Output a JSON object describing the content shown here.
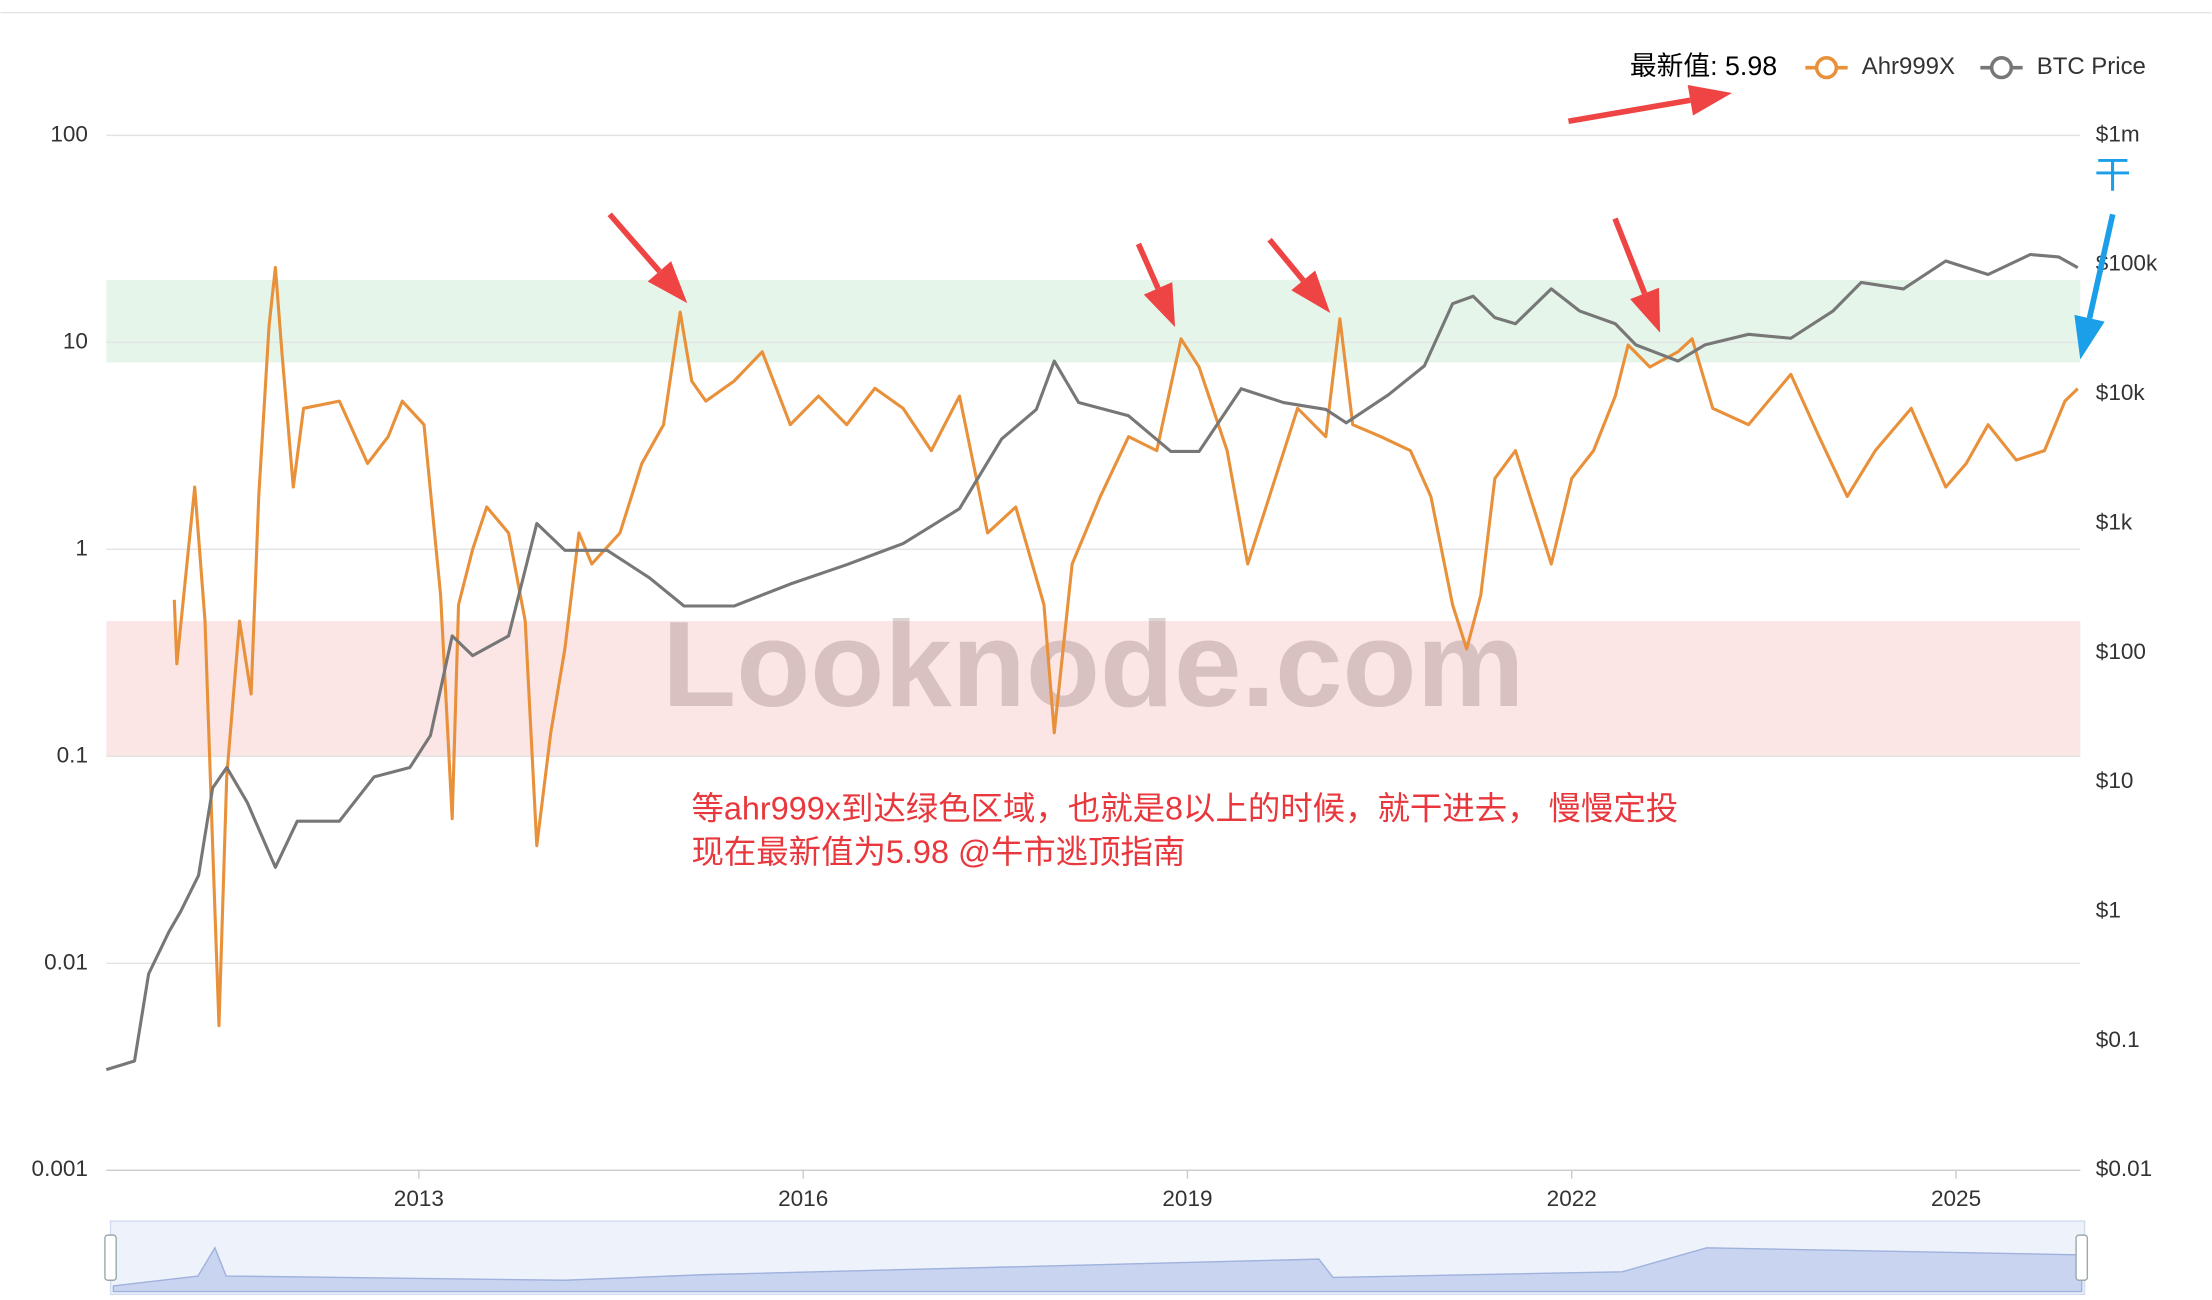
{
  "chart_data": {
    "type": "line",
    "legend_note": "最新值: 5.98",
    "watermark": "Looknode.com",
    "annotations": [
      "等ahr999x到达绿色区域，也就是8以上的时候，就干进去， 慢慢定投",
      "现在最新值为5.98  @牛市逃顶指南",
      "干"
    ],
    "log_scale": true,
    "grid": true,
    "legend_position": "top-right",
    "xlim": [
      2010.56,
      2025.97
    ],
    "xticks": [
      2013,
      2016,
      2019,
      2022,
      2025
    ],
    "ylim": [
      0.001,
      100
    ],
    "yticks": [
      0.001,
      0.01,
      0.1,
      1,
      10,
      100
    ],
    "y2lim": [
      0.01,
      1000000
    ],
    "y2ticks": [
      {
        "value": 0.01,
        "label": "$0.01"
      },
      {
        "value": 0.1,
        "label": "$0.1"
      },
      {
        "value": 1,
        "label": "$1"
      },
      {
        "value": 10,
        "label": "$10"
      },
      {
        "value": 100,
        "label": "$100"
      },
      {
        "value": 1000,
        "label": "$1k"
      },
      {
        "value": 10000,
        "label": "$10k"
      },
      {
        "value": 100000,
        "label": "$100k"
      },
      {
        "value": 1000000,
        "label": "$1m"
      }
    ],
    "bands": [
      {
        "range": [
          8,
          20
        ],
        "color": "#e6f5ea"
      },
      {
        "range": [
          0.1,
          0.45
        ],
        "color": "#fbe5e5"
      }
    ],
    "series": [
      {
        "name": "Ahr999X",
        "color": "#e8913a",
        "x": [
          2011.09,
          2011.11,
          2011.25,
          2011.33,
          2011.39,
          2011.44,
          2011.5,
          2011.6,
          2011.69,
          2011.75,
          2011.83,
          2011.88,
          2011.93,
          2012.02,
          2012.1,
          2012.38,
          2012.6,
          2012.76,
          2012.87,
          2013.04,
          2013.17,
          2013.26,
          2013.31,
          2013.42,
          2013.53,
          2013.7,
          2013.83,
          2013.92,
          2014.03,
          2014.14,
          2014.25,
          2014.35,
          2014.57,
          2014.74,
          2014.91,
          2015.04,
          2015.13,
          2015.24,
          2015.46,
          2015.68,
          2015.9,
          2016.12,
          2016.34,
          2016.56,
          2016.78,
          2017.0,
          2017.22,
          2017.44,
          2017.66,
          2017.88,
          2017.96,
          2018.1,
          2018.32,
          2018.54,
          2018.76,
          2018.95,
          2019.09,
          2019.31,
          2019.47,
          2019.64,
          2019.86,
          2020.08,
          2020.19,
          2020.29,
          2020.51,
          2020.74,
          2020.9,
          2021.07,
          2021.18,
          2021.29,
          2021.4,
          2021.56,
          2021.73,
          2021.84,
          2022.0,
          2022.17,
          2022.34,
          2022.44,
          2022.61,
          2022.83,
          2022.94,
          2023.1,
          2023.38,
          2023.71,
          2023.93,
          2024.15,
          2024.37,
          2024.65,
          2024.92,
          2025.08,
          2025.25,
          2025.47,
          2025.69,
          2025.85,
          2025.95
        ],
        "values": [
          0.57,
          0.28,
          2.0,
          0.45,
          0.037,
          0.005,
          0.08,
          0.45,
          0.2,
          1.8,
          12,
          23,
          9,
          2,
          4.8,
          5.2,
          2.6,
          3.5,
          5.2,
          4,
          0.6,
          0.05,
          0.54,
          1,
          1.6,
          1.2,
          0.45,
          0.037,
          0.13,
          0.33,
          1.2,
          0.85,
          1.2,
          2.6,
          4,
          14,
          6.5,
          5.2,
          6.5,
          9,
          4,
          5.5,
          4,
          6,
          4.8,
          3,
          5.5,
          1.2,
          1.6,
          0.54,
          0.13,
          0.85,
          1.8,
          3.5,
          3,
          10.4,
          7.6,
          3,
          0.85,
          1.8,
          4.8,
          3.5,
          13,
          4,
          3.5,
          3,
          1.8,
          0.54,
          0.33,
          0.6,
          2.2,
          3,
          1.4,
          0.85,
          2.2,
          3,
          5.5,
          9.7,
          7.6,
          9,
          10.4,
          4.8,
          4,
          7,
          3.5,
          1.8,
          3,
          4.8,
          2,
          2.6,
          4,
          2.7,
          3,
          5.2,
          5.98
        ]
      },
      {
        "name": "BTC Price",
        "color": "#777777",
        "axis": "y2",
        "x": [
          2010.56,
          2010.78,
          2010.89,
          2011.05,
          2011.14,
          2011.28,
          2011.39,
          2011.5,
          2011.66,
          2011.88,
          2012.05,
          2012.38,
          2012.65,
          2012.93,
          2013.09,
          2013.26,
          2013.42,
          2013.7,
          2013.92,
          2014.14,
          2014.47,
          2014.8,
          2015.07,
          2015.46,
          2015.9,
          2016.34,
          2016.78,
          2017.22,
          2017.55,
          2017.82,
          2017.96,
          2018.15,
          2018.54,
          2018.87,
          2019.09,
          2019.42,
          2019.75,
          2020.08,
          2020.24,
          2020.57,
          2020.85,
          2021.07,
          2021.23,
          2021.4,
          2021.56,
          2021.84,
          2022.06,
          2022.34,
          2022.5,
          2022.83,
          2023.04,
          2023.38,
          2023.71,
          2024.04,
          2024.26,
          2024.59,
          2024.92,
          2025.25,
          2025.58,
          2025.8,
          2025.95
        ],
        "values": [
          0.06,
          0.07,
          0.33,
          0.7,
          1,
          1.9,
          9,
          13,
          7,
          2.2,
          5,
          5,
          11,
          13,
          23,
          135,
          95,
          135,
          1000,
          620,
          620,
          380,
          230,
          230,
          340,
          480,
          700,
          1300,
          4500,
          7600,
          18000,
          8600,
          6800,
          3600,
          3600,
          11000,
          8600,
          7600,
          6000,
          9900,
          16500,
          50000,
          57000,
          39000,
          35000,
          65000,
          44000,
          35000,
          24000,
          18000,
          24000,
          29000,
          27000,
          44000,
          73000,
          65000,
          107000,
          84000,
          120000,
          115000,
          95000
        ]
      }
    ]
  }
}
